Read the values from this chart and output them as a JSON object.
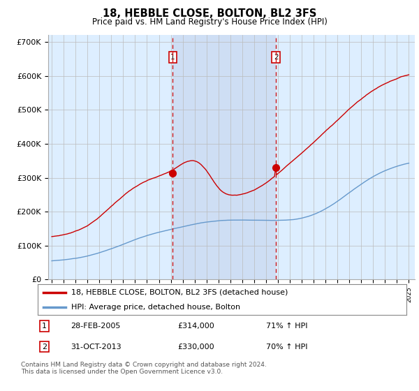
{
  "title": "18, HEBBLE CLOSE, BOLTON, BL2 3FS",
  "subtitle": "Price paid vs. HM Land Registry's House Price Index (HPI)",
  "background_color": "#ffffff",
  "plot_bg_color": "#ddeeff",
  "shade_color": "#c8d8f0",
  "legend_label_red": "18, HEBBLE CLOSE, BOLTON, BL2 3FS (detached house)",
  "legend_label_blue": "HPI: Average price, detached house, Bolton",
  "transaction1_date": "28-FEB-2005",
  "transaction1_price": "£314,000",
  "transaction1_hpi": "71% ↑ HPI",
  "transaction2_date": "31-OCT-2013",
  "transaction2_price": "£330,000",
  "transaction2_hpi": "70% ↑ HPI",
  "footnote": "Contains HM Land Registry data © Crown copyright and database right 2024.\nThis data is licensed under the Open Government Licence v3.0.",
  "ylim": [
    0,
    720000
  ],
  "yticks": [
    0,
    100000,
    200000,
    300000,
    400000,
    500000,
    600000,
    700000
  ],
  "ytick_labels": [
    "£0",
    "£100K",
    "£200K",
    "£300K",
    "£400K",
    "£500K",
    "£600K",
    "£700K"
  ],
  "red_color": "#cc0000",
  "blue_color": "#6699cc",
  "vline_color": "#cc0000",
  "marker1_x": 2005.17,
  "marker1_y": 314000,
  "marker2_x": 2013.83,
  "marker2_y": 330000,
  "xmin": 1995.0,
  "xmax": 2025.5
}
